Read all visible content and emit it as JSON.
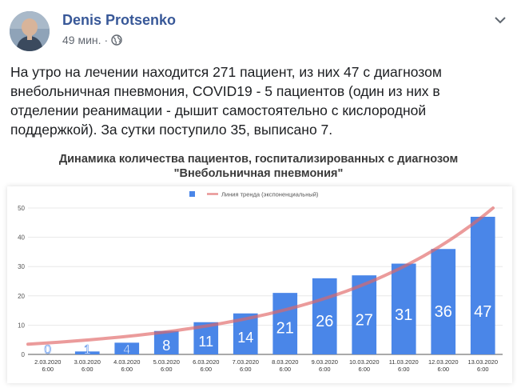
{
  "post": {
    "author": "Denis Protsenko",
    "time": "49 мин.",
    "separator": "·",
    "paragraphs": [
      "На утро на лечении находится 271 пациент, из них 47 с диагнозом",
      "внебольничная пневмония, COVID19 - 5 пациентов (один из них в",
      "отделении реанимации - дышит самостоятельно с кислородной",
      "поддержкой). За сутки поступило 35, выписано 7."
    ]
  },
  "chart_title_lines": [
    "Динамика количества пациентов, госпитализированных с диагнозом",
    "\"Внебольничная пневмония\""
  ],
  "chart_data": {
    "type": "bar",
    "title": "Динамика количества пациентов, госпитализированных с диагнозом \"Внебольничная пневмония\"",
    "categories": [
      "2.03.2020 6:00",
      "3.03.2020 6:00",
      "4.03.2020 6:00",
      "5.03.2020 6:00",
      "6.03.2020 6:00",
      "7.03.2020 6:00",
      "8.03.2020 6:00",
      "9.03.2020 6:00",
      "10.03.2020 6:00",
      "11.03.2020 6:00",
      "12.03.2020 6:00",
      "13.03.2020 6:00"
    ],
    "values": [
      0,
      1,
      4,
      8,
      11,
      14,
      21,
      26,
      27,
      31,
      36,
      47
    ],
    "ylim": [
      0,
      50
    ],
    "yticks": [
      0,
      10,
      20,
      30,
      40,
      50
    ],
    "grid": true,
    "legend": {
      "bar": "",
      "trend": "Линия тренда (экспоненциальный)",
      "placement": "top-center"
    },
    "trend": {
      "type": "exponential",
      "start": 3.5,
      "end": 50
    },
    "colors": {
      "bar": "#4a86e8",
      "trend": "#e06666"
    }
  }
}
